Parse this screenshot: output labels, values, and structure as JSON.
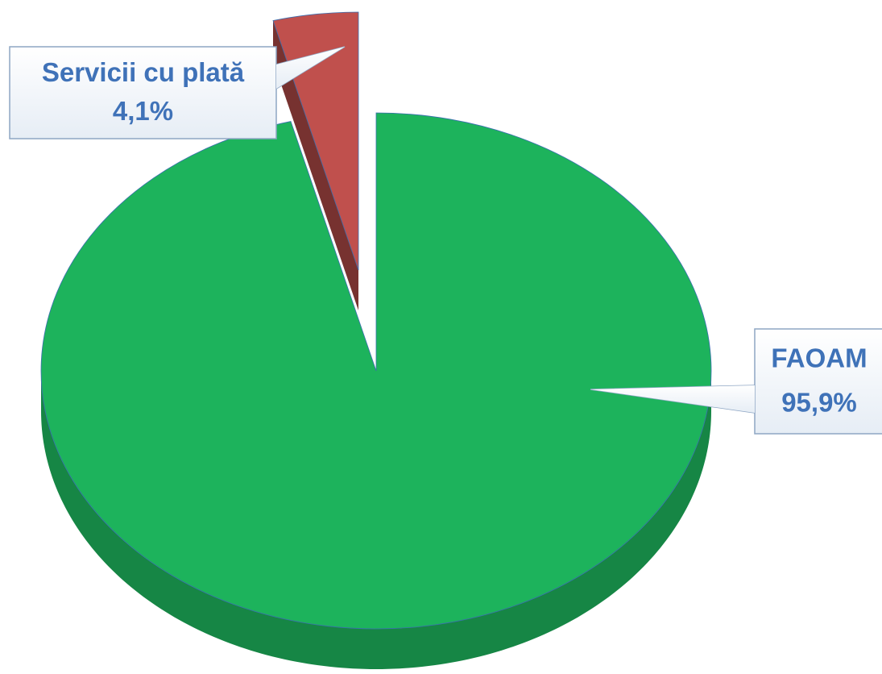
{
  "chart_data": {
    "type": "pie",
    "categories": [
      "FAOAM",
      "Servicii cu plată"
    ],
    "values": [
      95.9,
      4.1
    ],
    "value_labels": [
      "95,9%",
      "4,1%"
    ],
    "colors": [
      "#1db35c",
      "#c0504d"
    ]
  }
}
